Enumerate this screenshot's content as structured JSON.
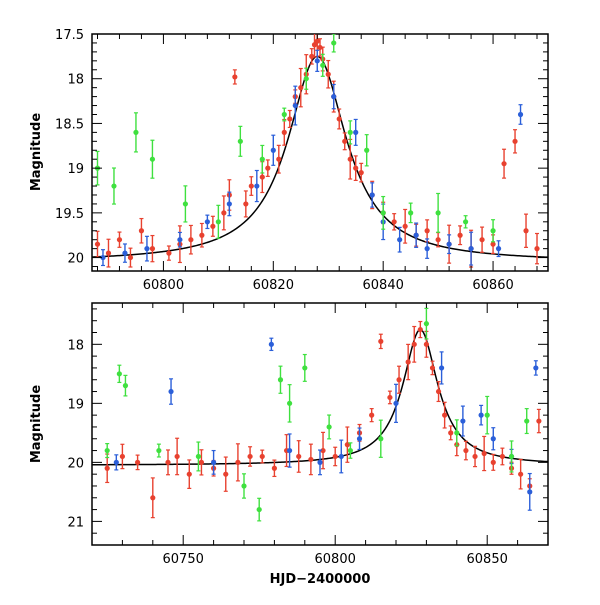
{
  "chart_data": [
    {
      "type": "scatter",
      "panel": "top",
      "xlabel": "",
      "ylabel": "Magnitude",
      "xlim": [
        60787,
        60870
      ],
      "ylim": [
        20.15,
        17.5
      ],
      "y_inverted": true,
      "x_ticks": [
        60800,
        60820,
        60840,
        60860
      ],
      "y_ticks": [
        17.5,
        18,
        18.5,
        19,
        19.5,
        20
      ],
      "y_tick_labels": [
        "17.5",
        "18",
        "18.5",
        "19",
        "19.5",
        "20"
      ],
      "model_curve": {
        "color": "#000000",
        "peak_x": 60828,
        "peak_y": 17.75,
        "base_y": 20.05,
        "width": 6.5
      },
      "series": [
        {
          "color": "#e8412f",
          "x": [
            60788,
            60790,
            60792,
            60794,
            60796,
            60798,
            60801,
            60803,
            60805,
            60807,
            60809,
            60811,
            60812,
            60813,
            60815,
            60816,
            60818,
            60819,
            60821,
            60822,
            60823,
            60824,
            60825,
            60826,
            60827,
            60827.5,
            60828,
            60828.5,
            60829,
            60830,
            60831,
            60832,
            60833,
            60834,
            60835,
            60836,
            60838,
            60840,
            60842,
            60844,
            60846,
            60848,
            60850,
            60852,
            60854,
            60856,
            60858,
            60860,
            60862,
            60864,
            60866,
            60868
          ],
          "y": [
            19.85,
            19.95,
            19.8,
            20.0,
            19.7,
            19.9,
            19.95,
            19.85,
            19.8,
            19.75,
            19.65,
            19.5,
            19.3,
            17.98,
            19.4,
            19.2,
            19.1,
            19.0,
            18.9,
            18.6,
            18.45,
            18.2,
            18.1,
            17.95,
            17.75,
            17.62,
            17.58,
            17.65,
            17.78,
            17.95,
            18.2,
            18.45,
            18.7,
            18.9,
            19.0,
            19.05,
            19.3,
            19.5,
            19.6,
            19.65,
            19.75,
            19.7,
            19.8,
            19.85,
            19.75,
            19.9,
            19.8,
            19.85,
            18.95,
            18.7,
            19.7,
            19.9
          ]
        },
        {
          "color": "#2b5fd9",
          "x": [
            60789,
            60793,
            60797,
            60803,
            60808,
            60812,
            60817,
            60820,
            60824,
            60828,
            60831,
            60835,
            60838,
            60840,
            60843,
            60846,
            60848,
            60852,
            60856,
            60861,
            60865
          ],
          "y": [
            20.0,
            19.95,
            19.9,
            19.8,
            19.6,
            19.4,
            19.2,
            18.8,
            18.3,
            17.8,
            18.2,
            18.6,
            19.3,
            19.6,
            19.8,
            19.75,
            19.9,
            19.85,
            19.9,
            19.9,
            18.4
          ]
        },
        {
          "color": "#3fe03f",
          "x": [
            60788,
            60791,
            60795,
            60798,
            60804,
            60810,
            60814,
            60818,
            60822,
            60826,
            60829,
            60831,
            60834,
            60837,
            60840,
            60845,
            60850,
            60855,
            60860
          ],
          "y": [
            19.0,
            19.2,
            18.6,
            18.9,
            19.4,
            19.6,
            18.7,
            18.9,
            18.4,
            18.0,
            17.85,
            17.6,
            18.6,
            18.8,
            19.5,
            19.5,
            19.5,
            19.6,
            19.7
          ]
        }
      ]
    },
    {
      "type": "scatter",
      "panel": "bottom",
      "xlabel": "HJD−2400000",
      "ylabel": "Magnitude",
      "xlim": [
        60720,
        60870
      ],
      "ylim": [
        21.4,
        17.3
      ],
      "y_inverted": true,
      "x_ticks": [
        60750,
        60800,
        60850
      ],
      "y_ticks": [
        18,
        19,
        20,
        21
      ],
      "y_tick_labels": [
        "18",
        "19",
        "20",
        "21"
      ],
      "model_curve": {
        "color": "#000000",
        "peak_x": 60828,
        "peak_y": 17.75,
        "base_y": 20.05,
        "width": 7
      },
      "series": [
        {
          "color": "#e8412f",
          "x": [
            60725,
            60730,
            60735,
            60740,
            60745,
            60748,
            60752,
            60756,
            60760,
            60764,
            60768,
            60772,
            60776,
            60780,
            60784,
            60788,
            60792,
            60796,
            60800,
            60804,
            60808,
            60812,
            60815,
            60818,
            60821,
            60824,
            60826,
            60828,
            60830,
            60832,
            60834,
            60836,
            60838,
            60840,
            60843,
            60846,
            60849,
            60852,
            60855,
            60858,
            60861,
            60864,
            60867
          ],
          "y": [
            20.1,
            19.9,
            20.0,
            20.6,
            20.0,
            19.9,
            20.2,
            20.0,
            20.1,
            20.2,
            20.0,
            19.9,
            19.9,
            20.1,
            19.8,
            19.9,
            19.95,
            19.8,
            19.9,
            19.7,
            19.5,
            19.2,
            17.95,
            18.9,
            18.6,
            18.3,
            18.0,
            17.75,
            18.0,
            18.4,
            18.8,
            19.2,
            19.5,
            19.7,
            19.8,
            19.9,
            19.85,
            20.0,
            19.9,
            20.1,
            20.2,
            20.4,
            19.3
          ]
        },
        {
          "color": "#2b5fd9",
          "x": [
            60728,
            60746,
            60760,
            60779,
            60785,
            60795,
            60802,
            60808,
            60820,
            60835,
            60842,
            60848,
            60852,
            60858,
            60864,
            60866
          ],
          "y": [
            20.0,
            18.8,
            20.0,
            18.0,
            19.8,
            20.0,
            19.9,
            19.6,
            19.0,
            18.4,
            19.3,
            19.2,
            19.6,
            19.9,
            20.5,
            18.4
          ]
        },
        {
          "color": "#3fe03f",
          "x": [
            60725,
            60729,
            60731,
            60742,
            60755,
            60770,
            60775,
            60782,
            60785,
            60790,
            60798,
            60805,
            60815,
            60830,
            60840,
            60850,
            60858,
            60863
          ],
          "y": [
            19.8,
            18.5,
            18.7,
            19.8,
            19.9,
            20.4,
            20.8,
            18.6,
            19.0,
            18.4,
            19.4,
            19.8,
            19.6,
            17.65,
            19.5,
            19.2,
            19.9,
            19.3
          ]
        }
      ]
    }
  ]
}
